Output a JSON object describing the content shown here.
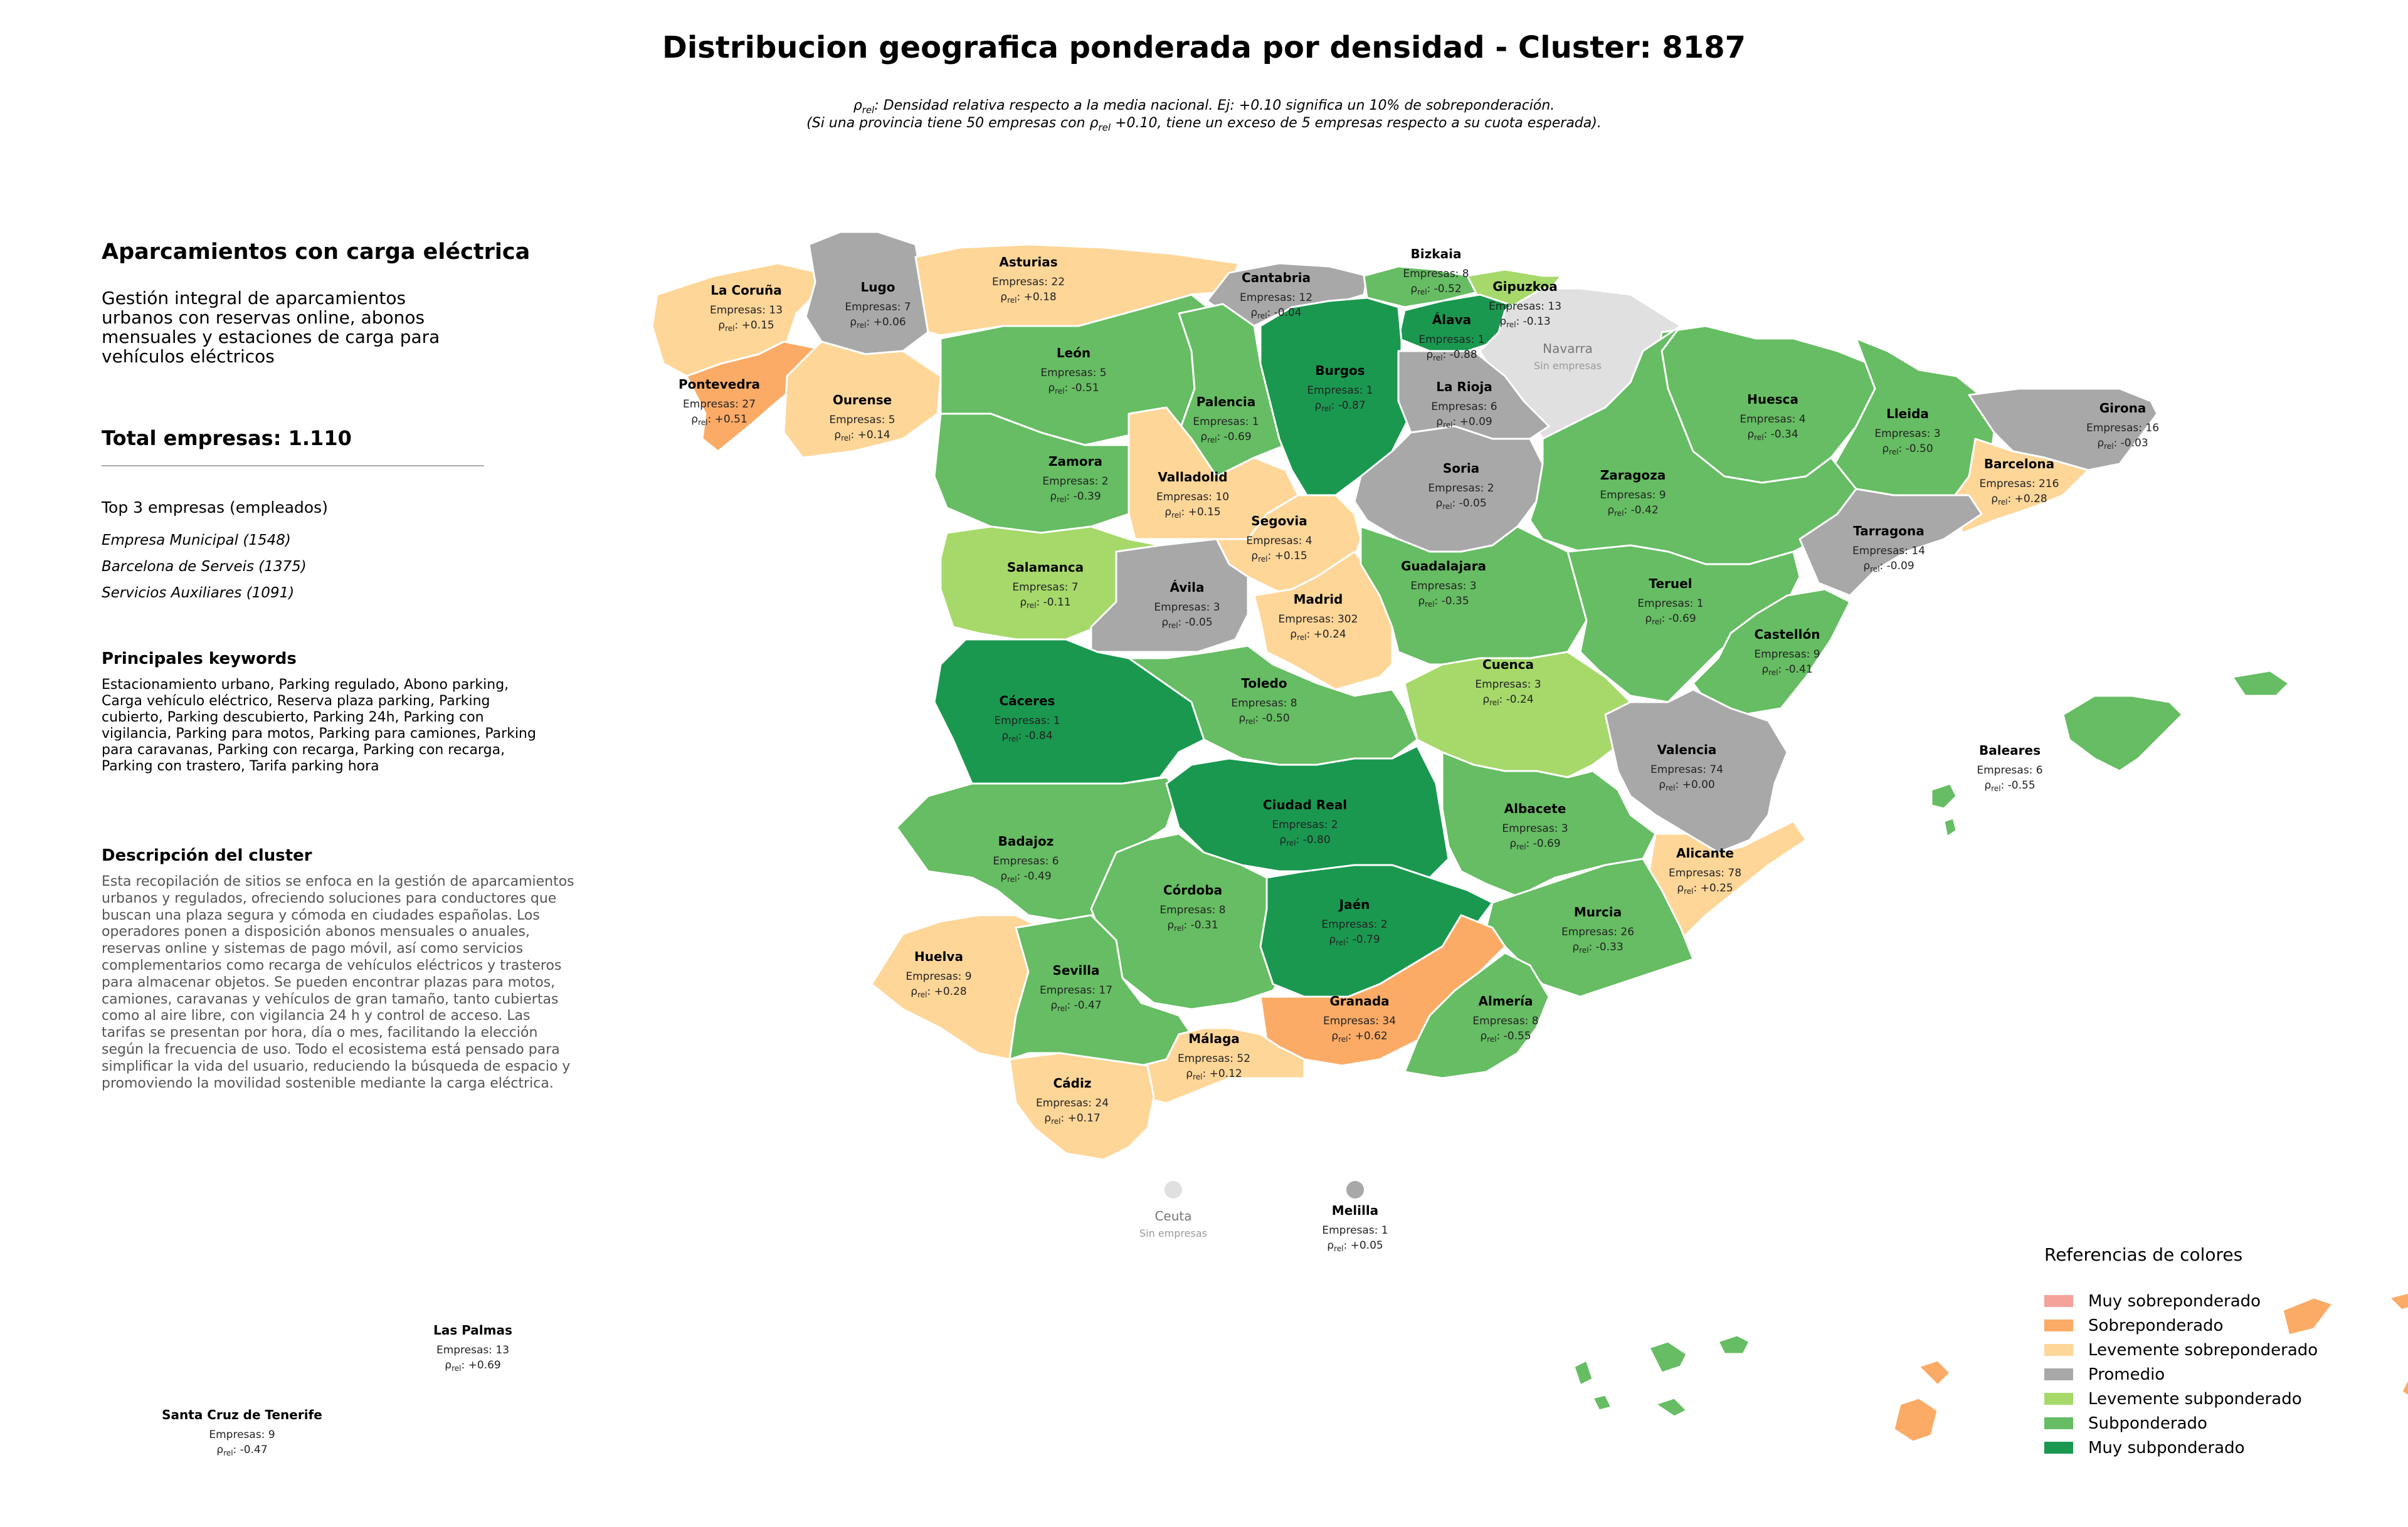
{
  "title": "Distribucion geografica ponderada por densidad - Cluster: 8187",
  "subtitle": {
    "line1_pre": "ρ",
    "line1_sub": "rel",
    "line1_post": ": Densidad relativa respecto a la media nacional. Ej: +0.10 significa un 10% de sobreponderación.",
    "line2_pre": "(Si una provincia tiene 50 empresas con ρ",
    "line2_sub": "rel",
    "line2_post": " +0.10, tiene un exceso de 5 empresas respecto a su cuota esperada)."
  },
  "sidebar": {
    "heading": "Aparcamientos con carga eléctrica",
    "description": "Gestión integral de aparcamientos urbanos con reservas online, abonos mensuales y estaciones de carga para vehículos eléctricos",
    "total": "Total empresas: 1.110",
    "top3_title": "Top 3 empresas (empleados)",
    "top3": [
      "Empresa Municipal (1548)",
      "Barcelona de Serveis (1375)",
      "Servicios Auxiliares (1091)"
    ],
    "keywords_title": "Principales keywords",
    "keywords": "Estacionamiento urbano, Parking regulado, Abono parking, Carga vehículo eléctrico, Reserva plaza parking, Parking cubierto, Parking descubierto, Parking 24h, Parking con vigilancia, Parking para motos, Parking para camiones, Parking para caravanas, Parking con recarga, Parking con recarga, Parking con trastero, Tarifa parking hora",
    "cluster_desc_title": "Descripción del cluster",
    "cluster_desc": "Esta recopilación de sitios se enfoca en la gestión de aparcamientos urbanos y regulados, ofreciendo soluciones para conductores que buscan una plaza segura y cómoda en ciudades españolas. Los operadores ponen a disposición abonos mensuales o anuales, reservas online y sistemas de pago móvil, así como servicios complementarios como recarga de vehículos eléctricos y trasteros para almacenar objetos. Se pueden encontrar plazas para motos, camiones, caravanas y vehículos de gran tamaño, tanto cubiertas como al aire libre, con vigilancia 24 h y control de acceso. Las tarifas se presentan por hora, día o mes, facilitando la elección según la frecuencia de uso. Todo el ecosistema está pensado para simplificar la vida del usuario, reduciendo la búsqueda de espacio y promoviendo la movilidad sostenible mediante la carga eléctrica."
  },
  "labels": {
    "empresas_prefix": "Empresas: ",
    "rho_symbol": "ρ",
    "rho_sub": "rel",
    "no_data": "Sin empresas"
  },
  "colors": {
    "muy_sobre": "#f4a29a",
    "sobre": "#fbab66",
    "lev_sobre": "#fed698",
    "promedio": "#a8a8a8",
    "lev_sub": "#a6d96a",
    "sub": "#66bd63",
    "muy_sub": "#1a9850",
    "sin_datos": "#e0e0e0"
  },
  "legend": {
    "title": "Referencias de colores",
    "items": [
      {
        "label": "Muy sobreponderado",
        "color": "#f4a29a"
      },
      {
        "label": "Sobreponderado",
        "color": "#fbab66"
      },
      {
        "label": "Levemente sobreponderado",
        "color": "#fed698"
      },
      {
        "label": "Promedio",
        "color": "#a8a8a8"
      },
      {
        "label": "Levemente subponderado",
        "color": "#a6d96a"
      },
      {
        "label": "Subponderado",
        "color": "#66bd63"
      },
      {
        "label": "Muy subponderado",
        "color": "#1a9850"
      }
    ]
  },
  "provinces": [
    {
      "id": "coruna",
      "name": "La Coruña",
      "empresas": 13,
      "rho": "+0.15",
      "cat": "lev_sobre"
    },
    {
      "id": "lugo",
      "name": "Lugo",
      "empresas": 7,
      "rho": "+0.06",
      "cat": "promedio"
    },
    {
      "id": "asturias",
      "name": "Asturias",
      "empresas": 22,
      "rho": "+0.18",
      "cat": "lev_sobre"
    },
    {
      "id": "cantabria",
      "name": "Cantabria",
      "empresas": 12,
      "rho": "-0.04",
      "cat": "promedio"
    },
    {
      "id": "bizkaia",
      "name": "Bizkaia",
      "empresas": 8,
      "rho": "-0.52",
      "cat": "sub"
    },
    {
      "id": "gipuzkoa",
      "name": "Gipuzkoa",
      "empresas": 13,
      "rho": "-0.13",
      "cat": "lev_sub"
    },
    {
      "id": "alava",
      "name": "Álava",
      "empresas": 1,
      "rho": "-0.88",
      "cat": "muy_sub"
    },
    {
      "id": "navarra",
      "name": "Navarra",
      "empresas": null,
      "rho": null,
      "cat": "sin_datos"
    },
    {
      "id": "pontevedra",
      "name": "Pontevedra",
      "empresas": 27,
      "rho": "+0.51",
      "cat": "sobre"
    },
    {
      "id": "ourense",
      "name": "Ourense",
      "empresas": 5,
      "rho": "+0.14",
      "cat": "lev_sobre"
    },
    {
      "id": "leon",
      "name": "León",
      "empresas": 5,
      "rho": "-0.51",
      "cat": "sub"
    },
    {
      "id": "palencia",
      "name": "Palencia",
      "empresas": 1,
      "rho": "-0.69",
      "cat": "sub"
    },
    {
      "id": "burgos",
      "name": "Burgos",
      "empresas": 1,
      "rho": "-0.87",
      "cat": "muy_sub"
    },
    {
      "id": "rioja",
      "name": "La Rioja",
      "empresas": 6,
      "rho": "+0.09",
      "cat": "promedio"
    },
    {
      "id": "huesca",
      "name": "Huesca",
      "empresas": 4,
      "rho": "-0.34",
      "cat": "sub"
    },
    {
      "id": "lleida",
      "name": "Lleida",
      "empresas": 3,
      "rho": "-0.50",
      "cat": "sub"
    },
    {
      "id": "girona",
      "name": "Girona",
      "empresas": 16,
      "rho": "-0.03",
      "cat": "promedio"
    },
    {
      "id": "barcelona",
      "name": "Barcelona",
      "empresas": 216,
      "rho": "+0.28",
      "cat": "lev_sobre"
    },
    {
      "id": "zamora",
      "name": "Zamora",
      "empresas": 2,
      "rho": "-0.39",
      "cat": "sub"
    },
    {
      "id": "valladolid",
      "name": "Valladolid",
      "empresas": 10,
      "rho": "+0.15",
      "cat": "lev_sobre"
    },
    {
      "id": "soria",
      "name": "Soria",
      "empresas": 2,
      "rho": "-0.05",
      "cat": "promedio"
    },
    {
      "id": "zaragoza",
      "name": "Zaragoza",
      "empresas": 9,
      "rho": "-0.42",
      "cat": "sub"
    },
    {
      "id": "tarragona",
      "name": "Tarragona",
      "empresas": 14,
      "rho": "-0.09",
      "cat": "promedio"
    },
    {
      "id": "salamanca",
      "name": "Salamanca",
      "empresas": 7,
      "rho": "-0.11",
      "cat": "lev_sub"
    },
    {
      "id": "segovia",
      "name": "Segovia",
      "empresas": 4,
      "rho": "+0.15",
      "cat": "lev_sobre"
    },
    {
      "id": "avila",
      "name": "Ávila",
      "empresas": 3,
      "rho": "-0.05",
      "cat": "promedio"
    },
    {
      "id": "madrid",
      "name": "Madrid",
      "empresas": 302,
      "rho": "+0.24",
      "cat": "lev_sobre"
    },
    {
      "id": "guadalajara",
      "name": "Guadalajara",
      "empresas": 3,
      "rho": "-0.35",
      "cat": "sub"
    },
    {
      "id": "teruel",
      "name": "Teruel",
      "empresas": 1,
      "rho": "-0.69",
      "cat": "sub"
    },
    {
      "id": "castellon",
      "name": "Castellón",
      "empresas": 9,
      "rho": "-0.41",
      "cat": "sub"
    },
    {
      "id": "caceres",
      "name": "Cáceres",
      "empresas": 1,
      "rho": "-0.84",
      "cat": "muy_sub"
    },
    {
      "id": "toledo",
      "name": "Toledo",
      "empresas": 8,
      "rho": "-0.50",
      "cat": "sub"
    },
    {
      "id": "cuenca",
      "name": "Cuenca",
      "empresas": 3,
      "rho": "-0.24",
      "cat": "lev_sub"
    },
    {
      "id": "valencia",
      "name": "Valencia",
      "empresas": 74,
      "rho": "+0.00",
      "cat": "promedio"
    },
    {
      "id": "badajoz",
      "name": "Badajoz",
      "empresas": 6,
      "rho": "-0.49",
      "cat": "sub"
    },
    {
      "id": "ciudadreal",
      "name": "Ciudad Real",
      "empresas": 2,
      "rho": "-0.80",
      "cat": "muy_sub"
    },
    {
      "id": "albacete",
      "name": "Albacete",
      "empresas": 3,
      "rho": "-0.69",
      "cat": "sub"
    },
    {
      "id": "alicante",
      "name": "Alicante",
      "empresas": 78,
      "rho": "+0.25",
      "cat": "lev_sobre"
    },
    {
      "id": "cordoba",
      "name": "Córdoba",
      "empresas": 8,
      "rho": "-0.31",
      "cat": "sub"
    },
    {
      "id": "jaen",
      "name": "Jaén",
      "empresas": 2,
      "rho": "-0.79",
      "cat": "muy_sub"
    },
    {
      "id": "murcia",
      "name": "Murcia",
      "empresas": 26,
      "rho": "-0.33",
      "cat": "sub"
    },
    {
      "id": "huelva",
      "name": "Huelva",
      "empresas": 9,
      "rho": "+0.28",
      "cat": "lev_sobre"
    },
    {
      "id": "sevilla",
      "name": "Sevilla",
      "empresas": 17,
      "rho": "-0.47",
      "cat": "sub"
    },
    {
      "id": "granada",
      "name": "Granada",
      "empresas": 34,
      "rho": "+0.62",
      "cat": "sobre"
    },
    {
      "id": "almeria",
      "name": "Almería",
      "empresas": 8,
      "rho": "-0.55",
      "cat": "sub"
    },
    {
      "id": "malaga",
      "name": "Málaga",
      "empresas": 52,
      "rho": "+0.12",
      "cat": "lev_sobre"
    },
    {
      "id": "cadiz",
      "name": "Cádiz",
      "empresas": 24,
      "rho": "+0.17",
      "cat": "lev_sobre"
    },
    {
      "id": "baleares",
      "name": "Baleares",
      "empresas": 6,
      "rho": "-0.55",
      "cat": "sub"
    },
    {
      "id": "ceuta",
      "name": "Ceuta",
      "empresas": null,
      "rho": null,
      "cat": "sin_datos"
    },
    {
      "id": "melilla",
      "name": "Melilla",
      "empresas": 1,
      "rho": "+0.05",
      "cat": "promedio"
    },
    {
      "id": "laspalmas",
      "name": "Las Palmas",
      "empresas": 13,
      "rho": "+0.69",
      "cat": "sobre"
    },
    {
      "id": "tenerife",
      "name": "Santa Cruz de Tenerife",
      "empresas": 9,
      "rho": "-0.47",
      "cat": "sub"
    }
  ]
}
